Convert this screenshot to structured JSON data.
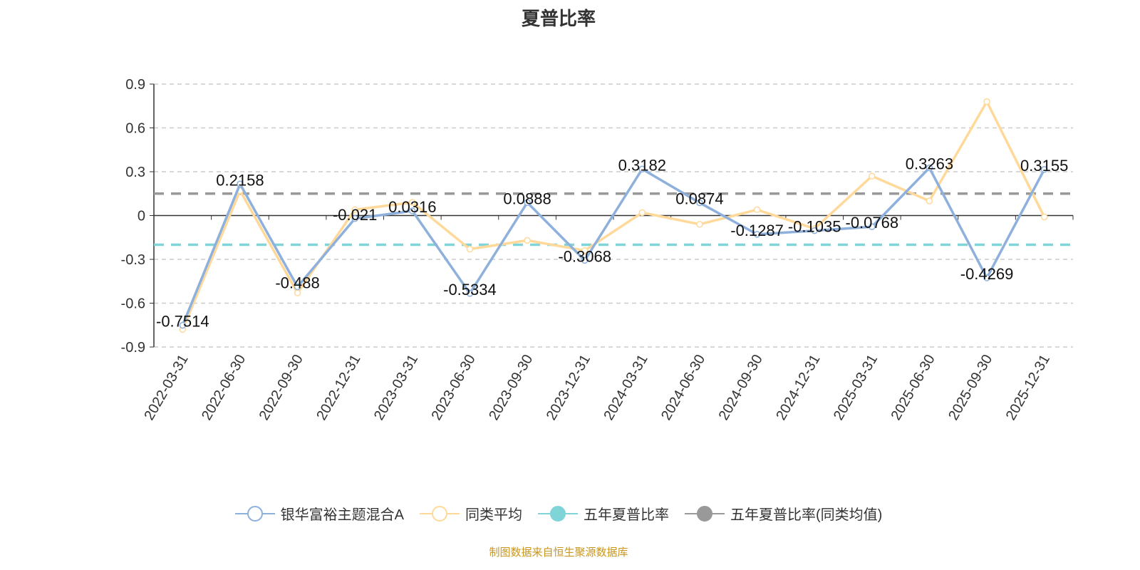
{
  "chart_data": {
    "type": "line",
    "title": "夏普比率",
    "categories": [
      "2022-03-31",
      "2022-06-30",
      "2022-09-30",
      "2022-12-31",
      "2023-03-31",
      "2023-06-30",
      "2023-09-30",
      "2023-12-31",
      "2024-03-31",
      "2024-06-30",
      "2024-09-30",
      "2024-12-31",
      "2025-03-31",
      "2025-06-30",
      "2025-09-30",
      "2025-12-31"
    ],
    "ylim": [
      -0.9,
      0.9
    ],
    "yticks": [
      0.9,
      0.6,
      0.3,
      0,
      -0.3,
      -0.6,
      -0.9
    ],
    "ytick_labels": [
      "0.9",
      "0.6",
      "0.3",
      "0",
      "-0.3",
      "-0.6",
      "-0.9"
    ],
    "grid": true,
    "legend_position": "bottom",
    "series": [
      {
        "name": "银华富裕主题混合A",
        "color": "#8eb0dc",
        "data_labels": true,
        "values": [
          -0.7514,
          0.2158,
          -0.488,
          -0.021,
          0.0316,
          -0.5334,
          0.0888,
          -0.3068,
          0.3182,
          0.0874,
          -0.1287,
          -0.1035,
          -0.0768,
          0.3263,
          -0.4269,
          0.3155
        ],
        "labels": [
          "-0.7514",
          "0.2158",
          "-0.488",
          "-0.021",
          "0.0316",
          "-0.5334",
          "0.0888",
          "-0.3068",
          "0.3182",
          "0.0874",
          "-0.1287",
          "-0.1035",
          "-0.0768",
          "0.3263",
          "-0.4269",
          "0.3155"
        ]
      },
      {
        "name": "同类平均",
        "color": "#ffd99a",
        "data_labels": false,
        "values": [
          -0.78,
          0.17,
          -0.53,
          0.04,
          0.09,
          -0.23,
          -0.17,
          -0.24,
          0.02,
          -0.06,
          0.04,
          -0.09,
          0.27,
          0.1,
          0.78,
          -0.01
        ]
      },
      {
        "name": "五年夏普比率",
        "color": "#7fd4d8",
        "type": "dashed-constant",
        "value": -0.2
      },
      {
        "name": "五年夏普比率(同类均值)",
        "color": "#999999",
        "type": "dashed-constant",
        "value": 0.15
      }
    ]
  },
  "footer": "制图数据来自恒生聚源数据库"
}
